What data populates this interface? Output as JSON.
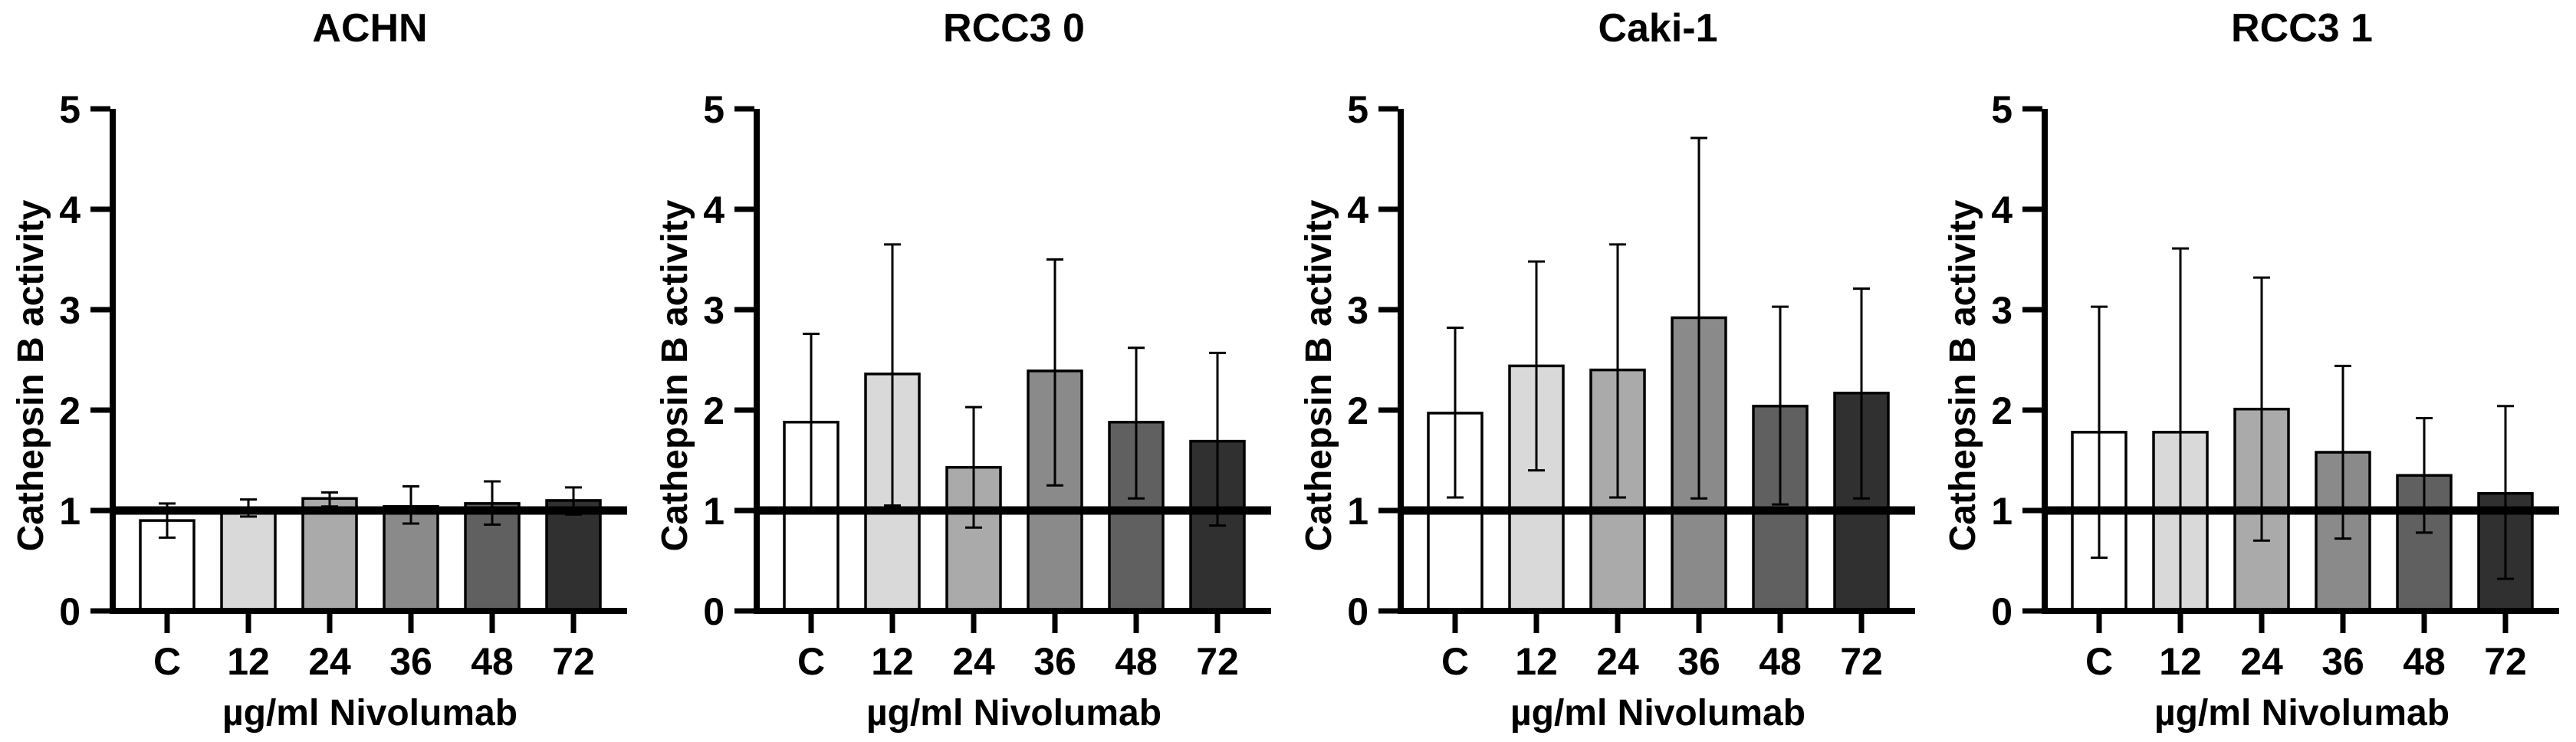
{
  "figure": {
    "background": "#ffffff",
    "axis_color": "#000000",
    "bar_fill_colors": [
      "#ffffff",
      "#d9d9d9",
      "#aaaaaa",
      "#8a8a8a",
      "#606060",
      "#303030"
    ],
    "bar_outline_color": "#000000",
    "panel_titles": [
      "ACHN",
      "RCC3 0",
      "Caki-1",
      "RCC3 1"
    ]
  },
  "chart_data": [
    {
      "type": "bar",
      "title": "ACHN",
      "xlabel": "µg/ml Nivolumab",
      "ylabel": "Cathepsin B activity",
      "categories": [
        "C",
        "12",
        "24",
        "36",
        "48",
        "72"
      ],
      "values": [
        0.9,
        1.0,
        1.12,
        1.04,
        1.07,
        1.1
      ],
      "error_low": [
        0.73,
        0.94,
        1.04,
        0.87,
        0.86,
        0.96
      ],
      "error_high": [
        1.07,
        1.11,
        1.18,
        1.24,
        1.29,
        1.23
      ],
      "ylim": [
        0,
        5
      ],
      "yticks": [
        0,
        1,
        2,
        3,
        4,
        5
      ],
      "reference_line_y": 1,
      "grid": false,
      "legend": "none"
    },
    {
      "type": "bar",
      "title": "RCC3 0",
      "xlabel": "µg/ml Nivolumab",
      "ylabel": "Cathepsin B activity",
      "categories": [
        "C",
        "12",
        "24",
        "36",
        "48",
        "72"
      ],
      "values": [
        1.88,
        2.36,
        1.43,
        2.39,
        1.88,
        1.69
      ],
      "error_low": [
        1.03,
        1.05,
        0.83,
        1.25,
        1.12,
        0.85
      ],
      "error_high": [
        2.76,
        3.65,
        2.03,
        3.5,
        2.62,
        2.57
      ],
      "ylim": [
        0,
        5
      ],
      "yticks": [
        0,
        1,
        2,
        3,
        4,
        5
      ],
      "reference_line_y": 1,
      "grid": false,
      "legend": "none"
    },
    {
      "type": "bar",
      "title": "Caki-1",
      "xlabel": "µg/ml Nivolumab",
      "ylabel": "Cathepsin B activity",
      "categories": [
        "C",
        "12",
        "24",
        "36",
        "48",
        "72"
      ],
      "values": [
        1.97,
        2.44,
        2.4,
        2.92,
        2.04,
        2.17
      ],
      "error_low": [
        1.13,
        1.4,
        1.13,
        1.12,
        1.06,
        1.12
      ],
      "error_high": [
        2.82,
        3.48,
        3.65,
        4.71,
        3.03,
        3.21
      ],
      "ylim": [
        0,
        5
      ],
      "yticks": [
        0,
        1,
        2,
        3,
        4,
        5
      ],
      "reference_line_y": 1,
      "grid": false,
      "legend": "none"
    },
    {
      "type": "bar",
      "title": "RCC3 1",
      "xlabel": "µg/ml Nivolumab",
      "ylabel": "Cathepsin B activity",
      "categories": [
        "C",
        "12",
        "24",
        "36",
        "48",
        "72"
      ],
      "values": [
        1.78,
        1.78,
        2.01,
        1.58,
        1.35,
        1.17
      ],
      "error_low": [
        0.53,
        0.02,
        0.7,
        0.72,
        0.78,
        0.32
      ],
      "error_high": [
        3.03,
        3.61,
        3.32,
        2.44,
        1.92,
        2.04
      ],
      "ylim": [
        0,
        5
      ],
      "yticks": [
        0,
        1,
        2,
        3,
        4,
        5
      ],
      "reference_line_y": 1,
      "grid": false,
      "legend": "none"
    }
  ]
}
